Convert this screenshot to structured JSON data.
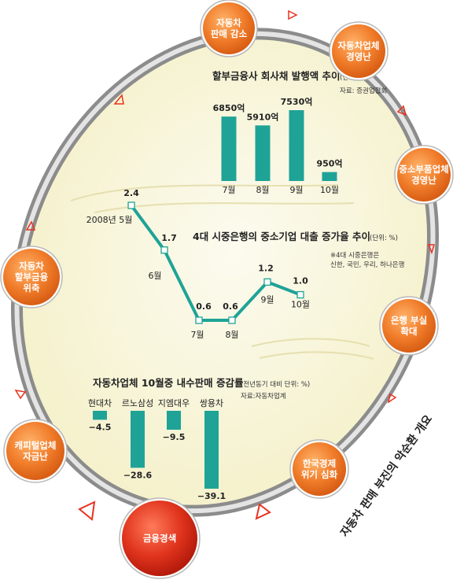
{
  "caption": "자동차 판매 부진의 악순환 개요",
  "cycle_nodes": [
    {
      "lines": [
        "자동차",
        "판매 감소"
      ]
    },
    {
      "lines": [
        "자동차업체",
        "경영난"
      ]
    },
    {
      "lines": [
        "중소부품업체",
        "경영난"
      ]
    },
    {
      "lines": [
        "은행 부실",
        "확대"
      ]
    },
    {
      "lines": [
        "한국경제",
        "위기 심화"
      ]
    },
    {
      "lines": [
        "금융경색"
      ]
    },
    {
      "lines": [
        "캐피털업체",
        "자금난"
      ]
    },
    {
      "lines": [
        "자동차",
        "할부금융",
        "위축"
      ]
    }
  ],
  "colors": {
    "teal": "#1fa397",
    "node_orange": "#ef7d2c",
    "node_red": "#d72a1a",
    "ring": "#a9a9a9",
    "arrow": "#e8321f",
    "panel": "#f8f5dc"
  },
  "chart_data": [
    {
      "type": "bar",
      "title": "할부금융사 회사채 발행액 추이",
      "unit": "(단위: 원)",
      "source": "자료: 증권업협회",
      "categories": [
        "7월",
        "8월",
        "9월",
        "10월"
      ],
      "values": [
        6850,
        5910,
        7530,
        950
      ],
      "value_labels": [
        "6850억",
        "5910억",
        "7530억",
        "950억"
      ]
    },
    {
      "type": "line",
      "title": "4대 시중은행의 중소기업 대출 증가율 추이",
      "unit": "(단위: %)",
      "note_lines": [
        "※4대 시중은행은",
        "신한, 국민, 우리, 하나은행"
      ],
      "point_labels": [
        "2008년 5월",
        "6월",
        "7월",
        "8월",
        "9월",
        "10월"
      ],
      "values": [
        2.4,
        1.7,
        0.6,
        0.6,
        1.2,
        1.0
      ],
      "value_labels": [
        "2.4",
        "1.7",
        "0.6",
        "0.6",
        "1.2",
        "1.0"
      ]
    },
    {
      "type": "bar",
      "title": "자동차업체 10월중 내수판매 증감률",
      "unit": "(전년동기 대비 단위: %)",
      "source": "자료:자동차업계",
      "categories": [
        "현대차",
        "르노삼성",
        "지엠대우",
        "쌍용차"
      ],
      "values": [
        -4.5,
        -28.6,
        -9.5,
        -39.1
      ],
      "value_labels": [
        "−4.5",
        "−28.6",
        "−9.5",
        "−39.1"
      ]
    }
  ]
}
